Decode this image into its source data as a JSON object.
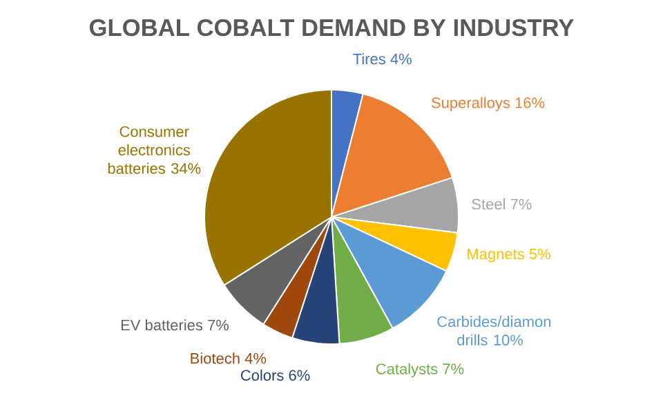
{
  "chart_data": {
    "type": "pie",
    "title": "GLOBAL COBALT DEMAND BY INDUSTRY",
    "categories": [
      "Tires",
      "Superalloys",
      "Steel",
      "Magnets",
      "Carbides/diamon drills",
      "Catalysts",
      "Colors",
      "Biotech",
      "EV batteries",
      "Consumer electronics batteries"
    ],
    "values": [
      4,
      16,
      7,
      5,
      10,
      7,
      6,
      4,
      7,
      34
    ],
    "value_labels": [
      "4%",
      "16%",
      "7%",
      "5%",
      "10%",
      "7%",
      "6%",
      "4%",
      "7%",
      "34%"
    ],
    "colors": [
      "#4472c4",
      "#ed7d31",
      "#a5a5a5",
      "#ffc000",
      "#5b9bd5",
      "#70ad47",
      "#264478",
      "#9e480e",
      "#636363",
      "#997300"
    ]
  }
}
